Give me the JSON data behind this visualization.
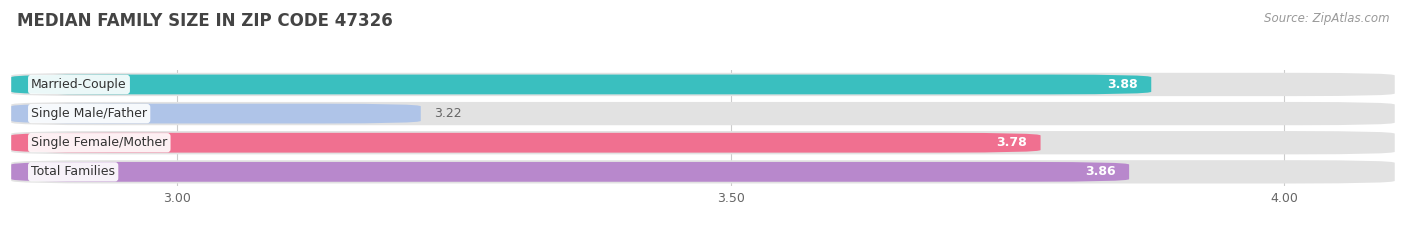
{
  "title": "MEDIAN FAMILY SIZE IN ZIP CODE 47326",
  "source": "Source: ZipAtlas.com",
  "categories": [
    "Married-Couple",
    "Single Male/Father",
    "Single Female/Mother",
    "Total Families"
  ],
  "values": [
    3.88,
    3.22,
    3.78,
    3.86
  ],
  "bar_colors": [
    "#3abfbf",
    "#afc4e8",
    "#f07090",
    "#b888cc"
  ],
  "value_label_colors": [
    "#ffffff",
    "#888888",
    "#ffffff",
    "#ffffff"
  ],
  "xlim": [
    2.85,
    4.1
  ],
  "xticks": [
    3.0,
    3.5,
    4.0
  ],
  "background_color": "#f4f4f4",
  "bar_bg_color": "#e2e2e2",
  "title_fontsize": 12,
  "source_fontsize": 8.5,
  "label_fontsize": 9,
  "value_fontsize": 9,
  "tick_fontsize": 9
}
